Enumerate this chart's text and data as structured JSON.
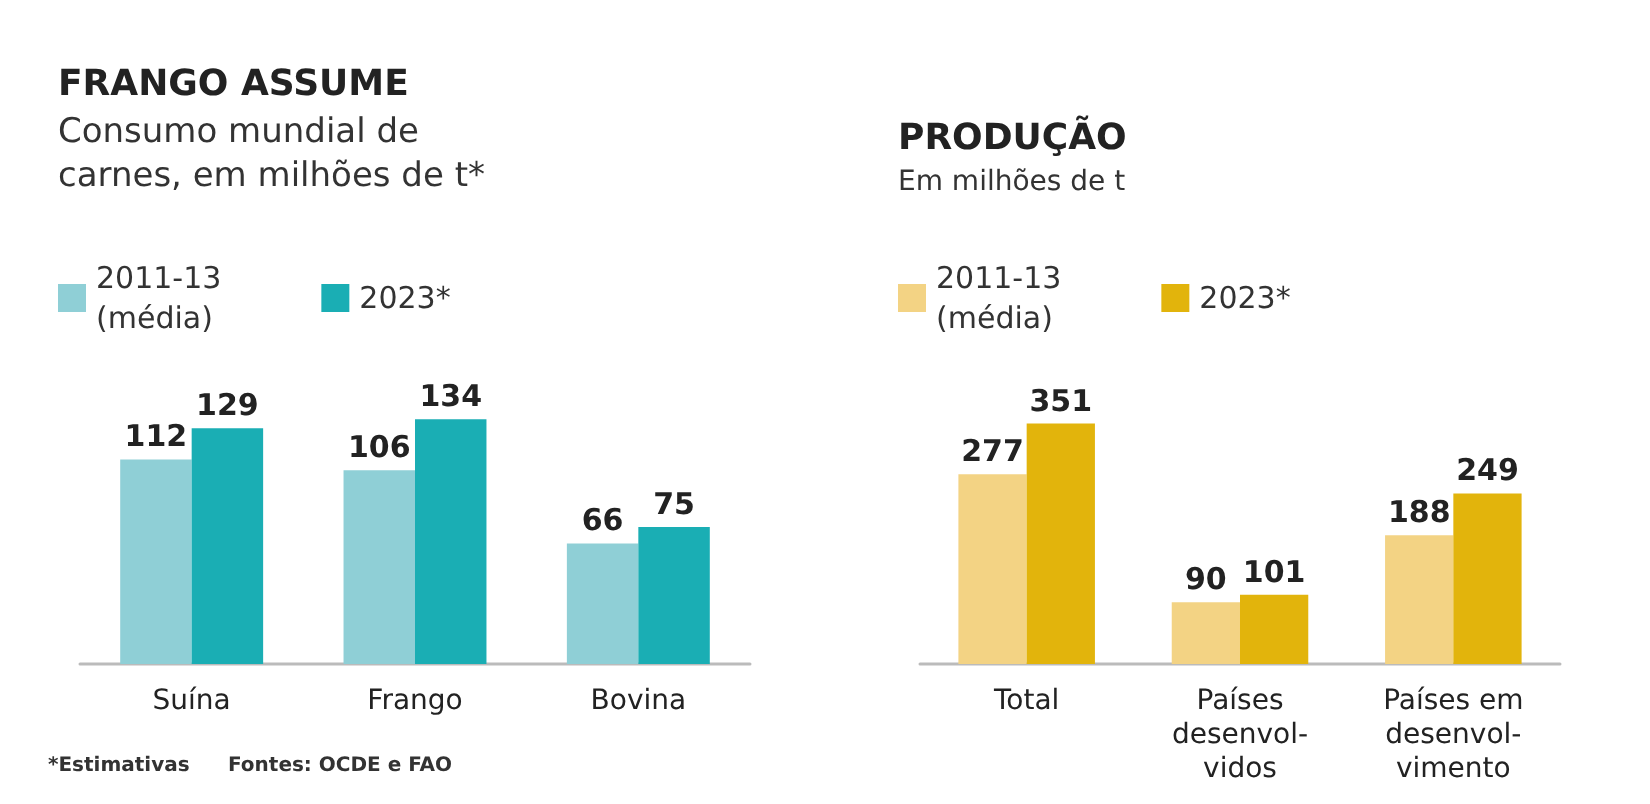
{
  "chart_data": [
    {
      "type": "bar",
      "title": "FRANGO ASSUME",
      "subtitle": "Consumo mundial de\ncarnes, em milhões de t*",
      "categories": [
        "Suína",
        "Frango",
        "Bovina"
      ],
      "series": [
        {
          "name": "2011-13\n(média)",
          "color": "#8fcfd6",
          "values": [
            112,
            106,
            66
          ]
        },
        {
          "name": "2023*",
          "color": "#1aaeb4",
          "values": [
            129,
            134,
            75
          ]
        }
      ],
      "data_labels": true,
      "legend": "top left",
      "annotations": [
        "*Estimativas",
        "Fontes: OCDE e FAO"
      ]
    },
    {
      "type": "bar",
      "title": "PRODUÇÃO",
      "subtitle": "Em milhões de t",
      "categories": [
        "Total",
        "Países\ndesenvol-\nvidos",
        "Países em\ndesenvol-\nvimento"
      ],
      "series": [
        {
          "name": "2011-13\n(média)",
          "color": "#f3d384",
          "values": [
            277,
            90,
            188
          ]
        },
        {
          "name": "2023*",
          "color": "#e2b40c",
          "values": [
            351,
            101,
            249
          ]
        }
      ],
      "data_labels": true,
      "legend": "top left"
    }
  ]
}
